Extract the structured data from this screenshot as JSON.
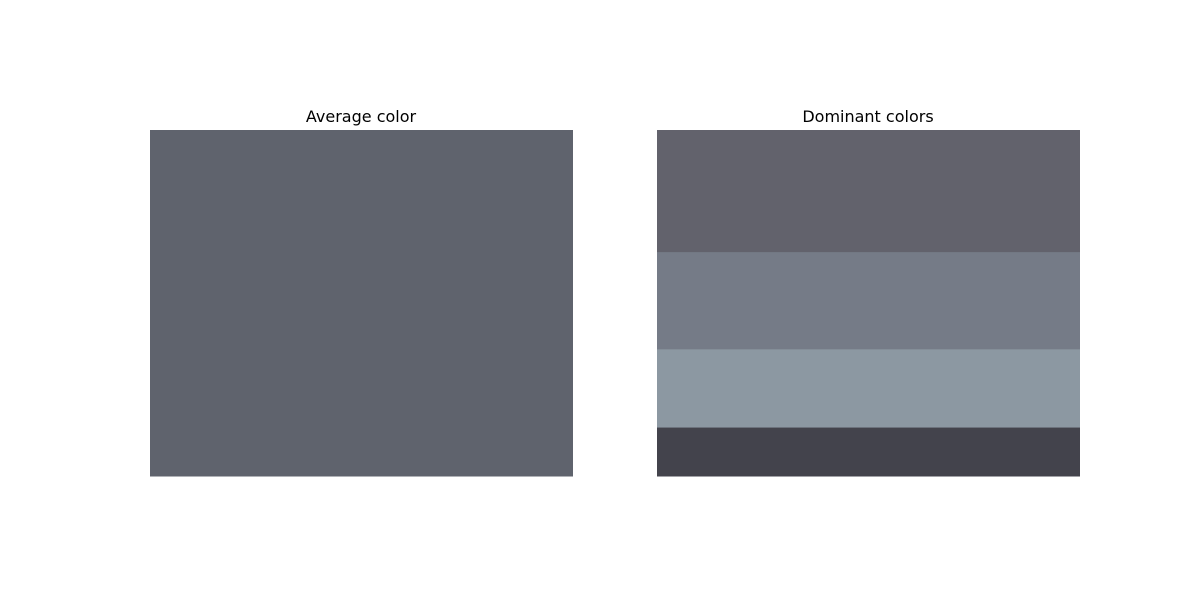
{
  "chart_data": [
    {
      "type": "table",
      "title": "Average color",
      "values": [
        1.0
      ],
      "colors": [
        "#5f636d"
      ]
    },
    {
      "type": "table",
      "title": "Dominant colors",
      "values": [
        0.353,
        0.281,
        0.226,
        0.14
      ],
      "colors": [
        "#62626c",
        "#757b87",
        "#8c98a2",
        "#43434c"
      ]
    }
  ]
}
